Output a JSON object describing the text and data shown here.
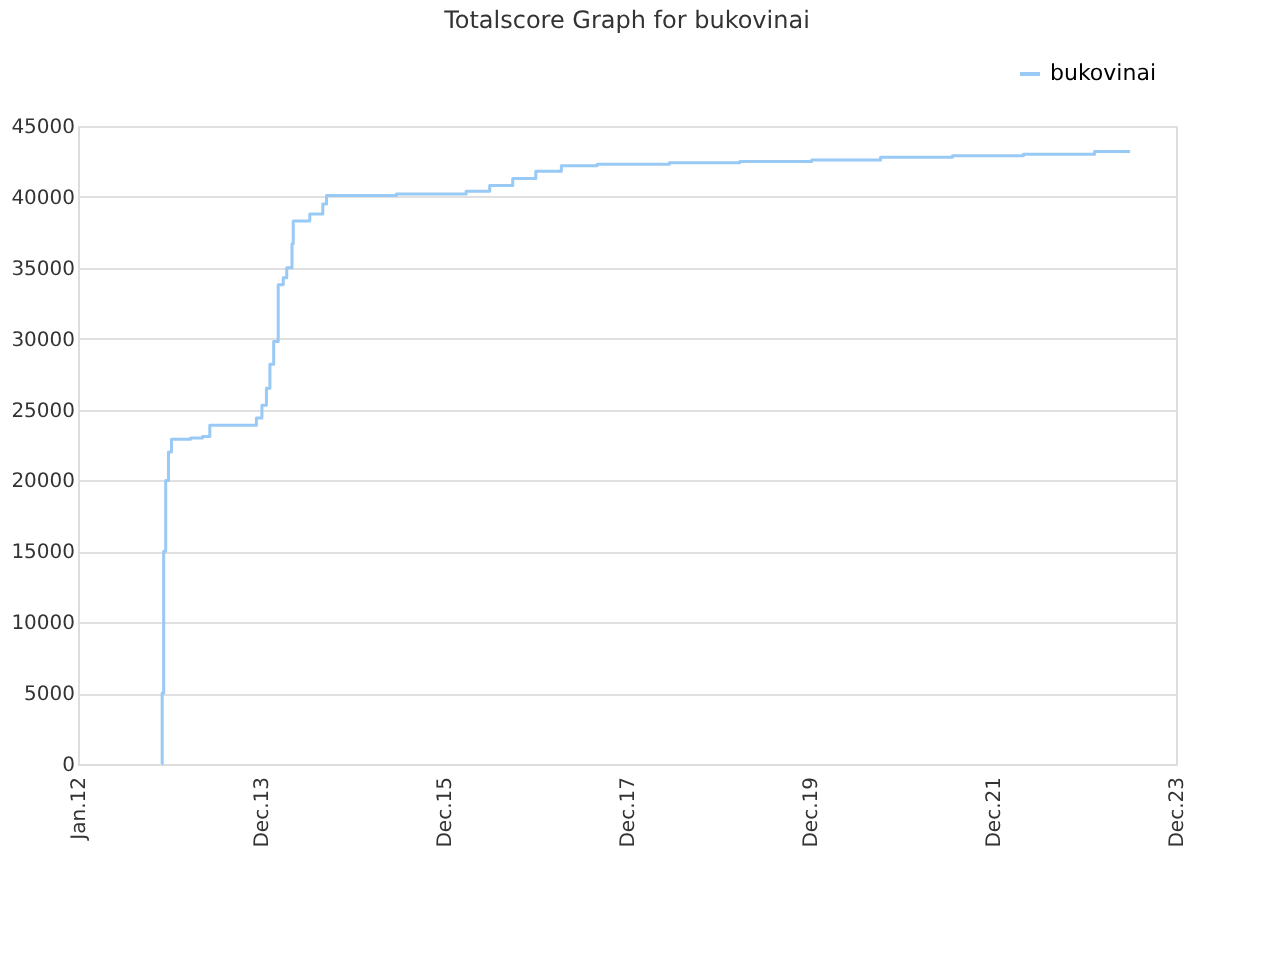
{
  "chart_data": {
    "type": "step",
    "title": "Totalscore Graph for bukovinai",
    "x": [
      "2012-12-01",
      "2012-12-02",
      "2012-12-08",
      "2012-12-16",
      "2012-12-27",
      "2013-01-08",
      "2013-03-25",
      "2013-05-12",
      "2013-06-10",
      "2013-12-13",
      "2014-01-04",
      "2014-01-22",
      "2014-02-05",
      "2014-02-20",
      "2014-03-10",
      "2014-03-30",
      "2014-04-13",
      "2014-05-04",
      "2014-05-09",
      "2014-07-14",
      "2014-09-04",
      "2014-09-19",
      "2015-06-25",
      "2016-03-29",
      "2016-07-01",
      "2016-10-01",
      "2017-01-01",
      "2017-04-13",
      "2017-09-03",
      "2018-06-18",
      "2019-03-26",
      "2020-01-07",
      "2020-10-08",
      "2021-07-22",
      "2022-05-01",
      "2023-02-09",
      "2023-07-01"
    ],
    "series": [
      {
        "name": "bukovinai",
        "color": "#99c9f5",
        "values": [
          0,
          5000,
          15000,
          20000,
          22000,
          22900,
          23000,
          23100,
          23900,
          24400,
          25300,
          26500,
          28200,
          29800,
          33800,
          34300,
          35000,
          36700,
          38300,
          38800,
          39500,
          40100,
          40200,
          40400,
          40800,
          41300,
          41800,
          42200,
          42300,
          42400,
          42500,
          42600,
          42800,
          42900,
          43000,
          43200,
          43200
        ]
      }
    ],
    "xlim": [
      "2012-01-01",
      "2023-12-31"
    ],
    "xticks": [
      {
        "value": "2012-01-01",
        "label": "Jan.12"
      },
      {
        "value": "2013-12-31",
        "label": "Dec.13"
      },
      {
        "value": "2015-12-31",
        "label": "Dec.15"
      },
      {
        "value": "2017-12-31",
        "label": "Dec.17"
      },
      {
        "value": "2019-12-31",
        "label": "Dec.19"
      },
      {
        "value": "2021-12-31",
        "label": "Dec.21"
      },
      {
        "value": "2023-12-31",
        "label": "Dec.23"
      }
    ],
    "ylim": [
      0,
      45000
    ],
    "yticks": [
      0,
      5000,
      10000,
      15000,
      20000,
      25000,
      30000,
      35000,
      40000,
      45000
    ],
    "grid": "y",
    "legend": "top right"
  }
}
